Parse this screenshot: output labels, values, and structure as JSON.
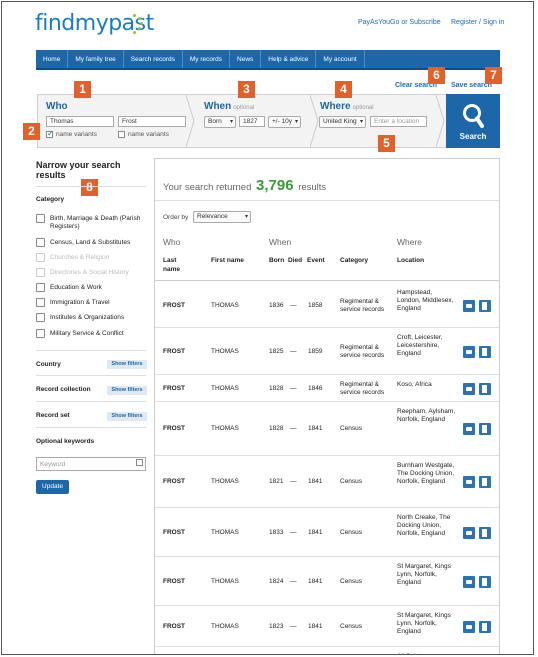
{
  "header": {
    "logo": "findmypast",
    "link_pay": "PayAsYouGo or Subscribe",
    "link_register": "Register / Sign in"
  },
  "nav": [
    "Home",
    "My family tree",
    "Search records",
    "My records",
    "News",
    "Help & advice",
    "My account"
  ],
  "callouts": [
    "1",
    "2",
    "3",
    "4",
    "5",
    "6",
    "7",
    "8"
  ],
  "search": {
    "clear_label": "Clear search",
    "save_label": "Save search",
    "who_title": "Who",
    "first_name": "Thomas",
    "last_name": "Frost",
    "name_variants_1": "name variants",
    "name_variants_2": "name variants",
    "when_title": "When",
    "when_optional": "optional",
    "born_select": "Born",
    "year": "1827",
    "range_select": "+/- 10y",
    "where_title": "Where",
    "where_optional": "optional",
    "country_select": "United King",
    "location_placeholder": "Enter a location",
    "search_button": "Search"
  },
  "sidebar": {
    "title": "Narrow your search results",
    "category_heading": "Category",
    "categories": [
      {
        "label": "Birth, Marriage & Death (Parish Registers)",
        "enabled": true
      },
      {
        "label": "Census, Land & Substitutes",
        "enabled": true
      },
      {
        "label": "Churches & Religion",
        "enabled": false
      },
      {
        "label": "Directories & Social History",
        "enabled": false
      },
      {
        "label": "Education & Work",
        "enabled": true
      },
      {
        "label": "Immigration & Travel",
        "enabled": true
      },
      {
        "label": "Institutes & Organizations",
        "enabled": true
      },
      {
        "label": "Military Service & Conflict",
        "enabled": true
      }
    ],
    "country_label": "Country",
    "record_collection_label": "Record collection",
    "record_set_label": "Record set",
    "show_filters": "Show filters",
    "keywords_heading": "Optional keywords",
    "keyword_placeholder": "Keyword",
    "update_button": "Update"
  },
  "results": {
    "returned_prefix": "Your search returned",
    "count": "3,796",
    "returned_suffix": "results",
    "order_by_label": "Order by",
    "order_by_value": "Relevance",
    "group_who": "Who",
    "group_when": "When",
    "group_where": "Where",
    "columns": {
      "last_name": "Last name",
      "first_name": "First name",
      "born": "Born",
      "died": "Died",
      "event": "Event",
      "category": "Category",
      "location": "Location"
    },
    "rows": [
      {
        "last": "FROST",
        "first": "THOMAS",
        "born": "1836",
        "dash": "—",
        "event": "1858",
        "category": "Regimental & service records",
        "location": "Hampstead, London, Middlesex, England"
      },
      {
        "last": "FROST",
        "first": "THOMAS",
        "born": "1825",
        "dash": "—",
        "event": "1859",
        "category": "Regimental & service records",
        "location": "Croft, Leicester, Leicestershire, England"
      },
      {
        "last": "FROST",
        "first": "THOMAS",
        "born": "1828",
        "dash": "—",
        "event": "1846",
        "category": "Regimental & service records",
        "location": "Koso, Africa"
      },
      {
        "last": "FROST",
        "first": "THOMAS",
        "born": "1828",
        "dash": "—",
        "event": "1841",
        "category": "Census",
        "location": "Reepham, Aylsham, Norfolk, England"
      },
      {
        "last": "FROST",
        "first": "THOMAS",
        "born": "1821",
        "dash": "—",
        "event": "1841",
        "category": "Census",
        "location": "Burnham Westgate, The Docking Union, Norfolk, England"
      },
      {
        "last": "FROST",
        "first": "THOMAS",
        "born": "1833",
        "dash": "—",
        "event": "1841",
        "category": "Census",
        "location": "North Creake, The Docking Union, Norfolk, England"
      },
      {
        "last": "FROST",
        "first": "THOMAS",
        "born": "1824",
        "dash": "—",
        "event": "1841",
        "category": "Census",
        "location": "St Margaret, Kings Lynn, Norfolk, England"
      },
      {
        "last": "FROST",
        "first": "THOMAS",
        "born": "1823",
        "dash": "—",
        "event": "1841",
        "category": "Census",
        "location": "St Margaret, Kings Lynn, Norfolk, England"
      },
      {
        "last": "",
        "first": "",
        "born": "",
        "dash": "",
        "event": "",
        "category": "",
        "location": "All Saints,"
      }
    ]
  }
}
